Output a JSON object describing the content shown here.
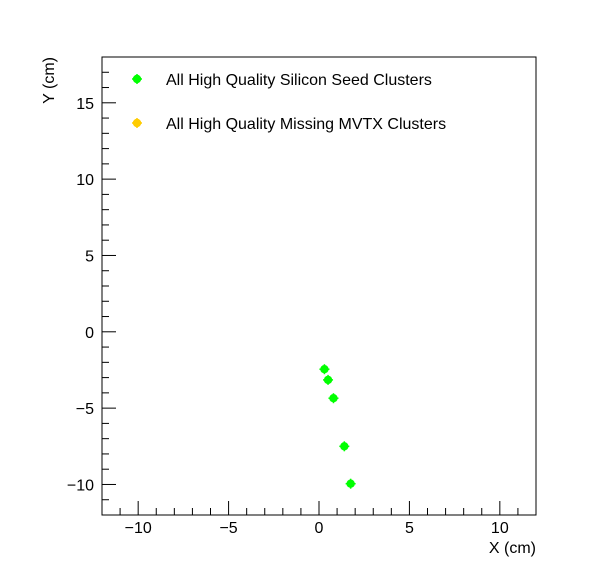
{
  "chart_data": {
    "type": "scatter",
    "xlabel": "X (cm)",
    "ylabel": "Y (cm)",
    "xlim": [
      -12,
      12
    ],
    "ylim": [
      -12,
      18
    ],
    "x_ticks": [
      -10,
      -5,
      0,
      5,
      10
    ],
    "y_ticks": [
      -10,
      -5,
      0,
      5,
      10,
      15
    ],
    "x_tick_labels": [
      "−10",
      "−5",
      "0",
      "5",
      "10"
    ],
    "y_tick_labels": [
      "−10",
      "−5",
      "0",
      "5",
      "10",
      "15"
    ],
    "grid": false,
    "legend_position": "top-left",
    "series": [
      {
        "name": "All High Quality Silicon Seed Clusters",
        "color": "#00ff00",
        "x": [
          0.3,
          0.5,
          0.8,
          1.4,
          1.75
        ],
        "y": [
          -2.45,
          -3.15,
          -4.35,
          -7.5,
          -9.95
        ]
      },
      {
        "name": "All High Quality Missing MVTX Clusters",
        "color": "#ffcc00",
        "x": [],
        "y": []
      }
    ]
  }
}
